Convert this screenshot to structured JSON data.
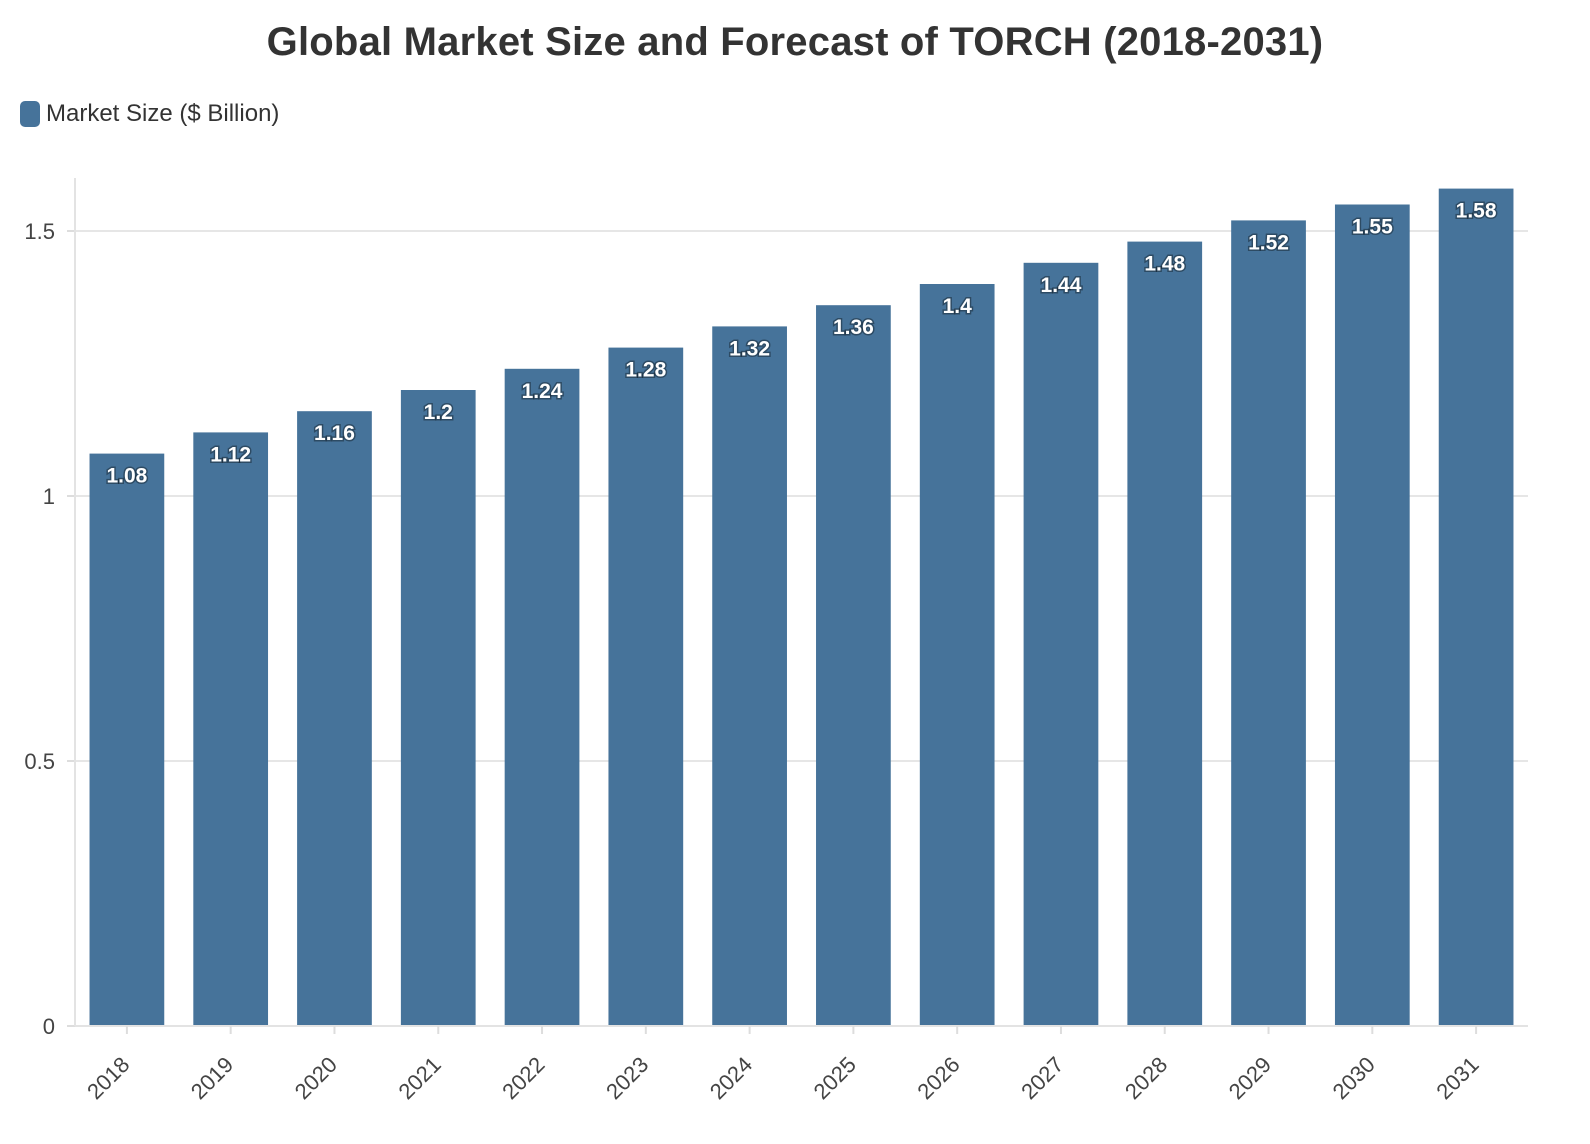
{
  "chart_data": {
    "type": "bar",
    "title": "Global Market Size and Forecast of TORCH (2018-2031)",
    "xlabel": "",
    "ylabel": "",
    "categories": [
      "2018",
      "2019",
      "2020",
      "2021",
      "2022",
      "2023",
      "2024",
      "2025",
      "2026",
      "2027",
      "2028",
      "2029",
      "2030",
      "2031"
    ],
    "series": [
      {
        "name": "Market Size ($ Billion)",
        "color": "#46739a",
        "values": [
          1.08,
          1.12,
          1.16,
          1.2,
          1.24,
          1.28,
          1.32,
          1.36,
          1.4,
          1.44,
          1.48,
          1.52,
          1.55,
          1.58
        ]
      }
    ],
    "data_labels": [
      "1.08",
      "1.12",
      "1.16",
      "1.2",
      "1.24",
      "1.28",
      "1.32",
      "1.36",
      "1.4",
      "1.44",
      "1.48",
      "1.52",
      "1.55",
      "1.58"
    ],
    "ylim": [
      0,
      1.6
    ],
    "yticks": [
      0,
      0.5,
      1,
      1.5
    ],
    "ytick_labels": [
      "0",
      "0.5",
      "1",
      "1.5"
    ],
    "grid": true,
    "legend_position": "top-left",
    "xtick_rotation": -45
  }
}
